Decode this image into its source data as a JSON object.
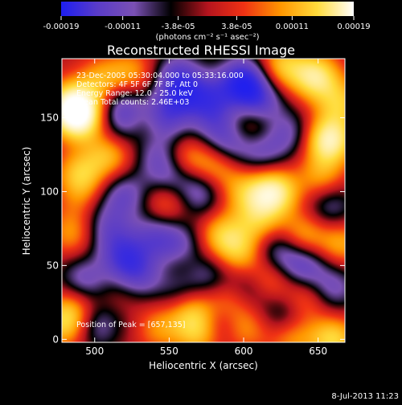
{
  "colorbar": {
    "ticks": [
      "-0.00019",
      "-0.00011",
      "-3.8e-05",
      "3.8e-05",
      "0.00011",
      "0.00019"
    ],
    "tick_values": [
      -0.00019,
      -0.00011,
      -3.8e-05,
      3.8e-05,
      0.00011,
      0.00019
    ],
    "range": [
      -0.00019,
      0.00019
    ],
    "unit_label": "(photons cm⁻² s⁻¹ asec⁻²)",
    "colors": [
      "#1e1ef0",
      "#5a3cc8",
      "#7a50b4",
      "#000000",
      "#b4141e",
      "#f03214",
      "#ff9600",
      "#ffdc3c",
      "#ffffff"
    ]
  },
  "chart_data": {
    "type": "heatmap",
    "title": "Reconstructed RHESSI Image",
    "xlabel": "Heliocentric X (arcsec)",
    "ylabel": "Heliocentric Y (arcsec)",
    "xlim": [
      478,
      668
    ],
    "ylim": [
      -2,
      190
    ],
    "x_ticks": [
      500,
      550,
      600,
      650
    ],
    "y_ticks": [
      0,
      50,
      100,
      150
    ],
    "annotations": [
      "23-Dec-2005 05:30:04.000 to 05:33:16.000",
      "Detectors: 4F 5F 6F 7F 8F, Att 0",
      "Energy Range: 12.0 - 25.0 keV",
      "Clean     Total counts: 2.46E+03"
    ],
    "peak_label": "Position of Peak = [657,135]",
    "peak": [
      657,
      135
    ],
    "blobs": [
      [
        485,
        158,
        1.0
      ],
      [
        490,
        150,
        0.8
      ],
      [
        490,
        112,
        0.6
      ],
      [
        510,
        125,
        0.55
      ],
      [
        485,
        72,
        0.45
      ],
      [
        495,
        92,
        0.5
      ],
      [
        520,
        25,
        0.55
      ],
      [
        487,
        22,
        0.45
      ],
      [
        480,
        10,
        0.6
      ],
      [
        535,
        145,
        0.45
      ],
      [
        525,
        180,
        0.45
      ],
      [
        560,
        122,
        0.5
      ],
      [
        548,
        95,
        0.5
      ],
      [
        582,
        118,
        0.55
      ],
      [
        600,
        100,
        0.45
      ],
      [
        605,
        145,
        0.5
      ],
      [
        585,
        70,
        0.6
      ],
      [
        598,
        58,
        0.5
      ],
      [
        620,
        100,
        0.95
      ],
      [
        610,
        80,
        0.5
      ],
      [
        640,
        70,
        0.55
      ],
      [
        652,
        110,
        0.45
      ],
      [
        657,
        135,
        1.0
      ],
      [
        648,
        178,
        0.85
      ],
      [
        625,
        185,
        0.6
      ],
      [
        560,
        50,
        0.45
      ],
      [
        565,
        22,
        0.55
      ],
      [
        570,
        5,
        0.6
      ],
      [
        640,
        28,
        0.45
      ],
      [
        615,
        40,
        0.6
      ],
      [
        590,
        25,
        0.45
      ],
      [
        600,
        8,
        0.45
      ],
      [
        660,
        0,
        0.7
      ],
      [
        632,
        2,
        0.45
      ],
      [
        543,
        8,
        0.4
      ],
      [
        665,
        160,
        0.55
      ],
      [
        505,
        175,
        0.5
      ],
      [
        665,
        65,
        0.5
      ],
      [
        600,
        175,
        -1.0
      ],
      [
        610,
        160,
        -0.7
      ],
      [
        578,
        165,
        -0.5
      ],
      [
        590,
        132,
        -0.6
      ],
      [
        580,
        148,
        -0.45
      ],
      [
        545,
        150,
        -0.75
      ],
      [
        560,
        165,
        -0.55
      ],
      [
        518,
        160,
        -0.5
      ],
      [
        520,
        145,
        -0.45
      ],
      [
        555,
        178,
        -0.6
      ],
      [
        550,
        110,
        -0.6
      ],
      [
        570,
        100,
        -0.55
      ],
      [
        520,
        98,
        -0.55
      ],
      [
        500,
        88,
        -0.45
      ],
      [
        520,
        55,
        -0.65
      ],
      [
        530,
        42,
        -0.5
      ],
      [
        510,
        72,
        -0.45
      ],
      [
        492,
        40,
        -0.55
      ],
      [
        500,
        10,
        -0.5
      ],
      [
        557,
        62,
        -0.6
      ],
      [
        540,
        70,
        -0.5
      ],
      [
        575,
        45,
        -0.45
      ],
      [
        558,
        35,
        -0.5
      ],
      [
        605,
        36,
        -0.55
      ],
      [
        622,
        60,
        -0.5
      ],
      [
        640,
        50,
        -0.65
      ],
      [
        660,
        35,
        -0.5
      ],
      [
        658,
        90,
        -0.45
      ],
      [
        627,
        18,
        -0.45
      ],
      [
        585,
        12,
        -0.45
      ],
      [
        612,
        128,
        -0.5
      ],
      [
        630,
        140,
        -0.45
      ],
      [
        520,
        22,
        -0.45
      ],
      [
        542,
        127,
        -0.45
      ]
    ]
  },
  "footer": {
    "timestamp": "8-Jul-2013 11:23"
  }
}
